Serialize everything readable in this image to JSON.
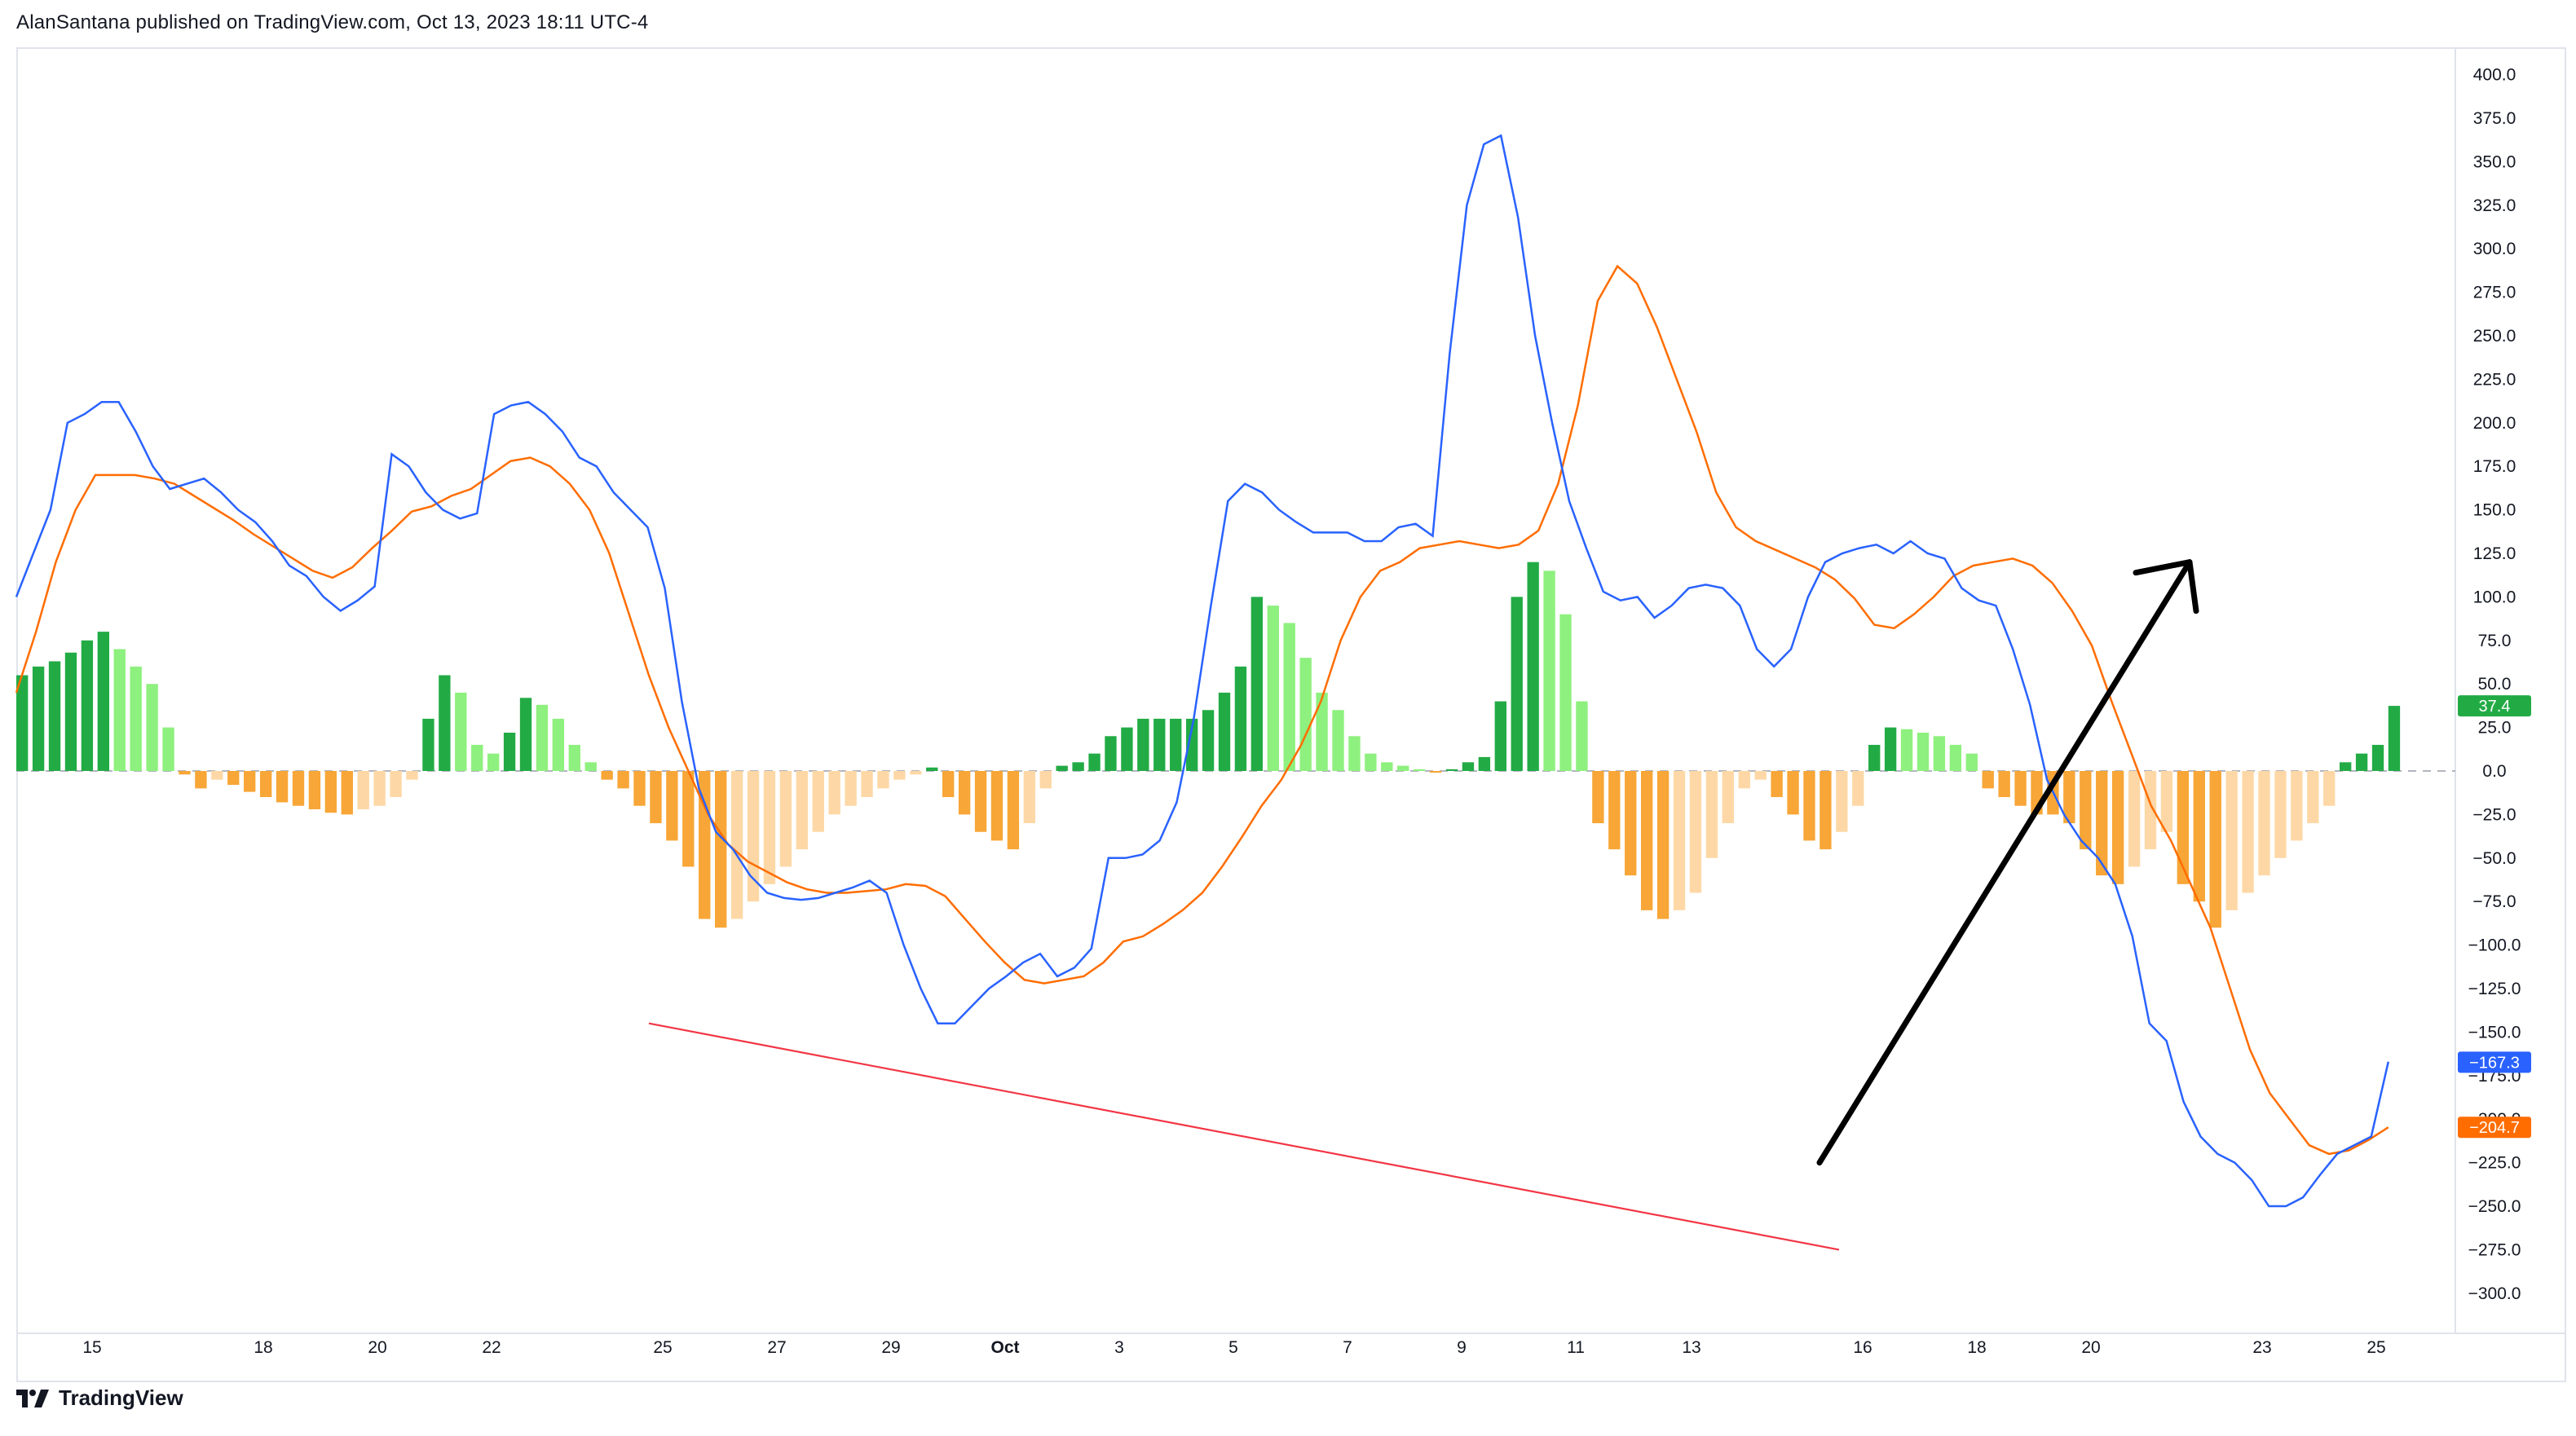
{
  "header": {
    "text": "AlanSantana published on TradingView.com, Oct 13, 2023 18:11 UTC-4"
  },
  "footer": {
    "brand": "TradingView"
  },
  "colors": {
    "macd": "#2962ff",
    "signal": "#ff6d00",
    "hist_pos_strong": "#22ab45",
    "hist_pos_weak": "#8ef07e",
    "hist_neg_strong": "#f7a637",
    "hist_neg_weak": "#fdd8a6",
    "trendline": "#f23645",
    "arrow": "#000000",
    "zero_line": "#b2b5be",
    "badge_hist": "#22ab45",
    "badge_macd": "#2962ff",
    "badge_signal": "#ff6d00"
  },
  "chart_data": {
    "type": "line",
    "title": "",
    "xlabel": "",
    "ylabel": "",
    "x_ticks": [
      "15",
      "18",
      "20",
      "22",
      "25",
      "27",
      "29",
      "Oct",
      "3",
      "5",
      "7",
      "9",
      "11",
      "13",
      "16",
      "18",
      "20",
      "23",
      "25"
    ],
    "y_ticks": [
      "400.0",
      "375.0",
      "350.0",
      "325.0",
      "300.0",
      "275.0",
      "250.0",
      "225.0",
      "200.0",
      "175.0",
      "150.0",
      "125.0",
      "100.0",
      "75.0",
      "50.0",
      "25.0",
      "0.0",
      "−25.0",
      "−50.0",
      "−75.0",
      "−100.0",
      "−125.0",
      "−150.0",
      "−175.0",
      "−200.0",
      "−225.0",
      "−250.0",
      "−275.0",
      "−300.0"
    ],
    "ylim": [
      -300,
      400
    ],
    "grid": false,
    "last_values": {
      "histogram": "37.4",
      "macd": "−167.3",
      "signal": "−204.7"
    },
    "series": [
      {
        "values": [
          100,
          125,
          150,
          200,
          205,
          212,
          212,
          195,
          175,
          162,
          165,
          168,
          160,
          150,
          143,
          132,
          118,
          112,
          100,
          92,
          98,
          106,
          182,
          175,
          160,
          150,
          145,
          148,
          205,
          210,
          212,
          205,
          195,
          180,
          175,
          160,
          150,
          140,
          105,
          40,
          -10,
          -35,
          -45,
          -60,
          -70,
          -73,
          -74,
          -73,
          -70,
          -67,
          -63,
          -70,
          -100,
          -125,
          -145,
          -145,
          -135,
          -125,
          -118,
          -110,
          -105,
          -118,
          -113,
          -102,
          -50,
          -50,
          -48,
          -40,
          -18,
          30,
          95,
          155,
          165,
          160,
          150,
          143,
          137,
          137,
          137,
          132,
          132,
          140,
          142,
          135,
          240,
          325,
          360,
          365,
          318,
          250,
          200,
          155,
          128,
          103,
          98,
          100,
          88,
          95,
          105,
          107,
          105,
          95,
          70,
          60,
          70,
          100,
          120,
          125,
          128,
          130,
          125,
          132,
          125,
          122,
          105,
          98,
          95,
          70,
          38,
          -5,
          -25,
          -40,
          -50,
          -65,
          -95,
          -145,
          -155,
          -190,
          -210,
          -220,
          -225,
          -235,
          -250,
          -250,
          -245,
          -232,
          -220,
          -215,
          -210,
          -167
        ]
      },
      {
        "values": [
          45,
          80,
          120,
          150,
          170,
          170,
          170,
          168,
          165,
          158,
          151,
          144,
          136,
          129,
          122,
          115,
          111,
          117,
          128,
          138,
          149,
          152,
          158,
          162,
          170,
          178,
          180,
          175,
          165,
          150,
          125,
          90,
          55,
          25,
          0,
          -25,
          -42,
          -52,
          -58,
          -64,
          -68,
          -70,
          -70,
          -69,
          -68,
          -65,
          -66,
          -72,
          -85,
          -98,
          -110,
          -120,
          -122,
          -120,
          -118,
          -110,
          -98,
          -95,
          -88,
          -80,
          -70,
          -55,
          -38,
          -20,
          -5,
          15,
          40,
          75,
          100,
          115,
          120,
          128,
          130,
          132,
          130,
          128,
          130,
          138,
          165,
          210,
          270,
          290,
          280,
          255,
          225,
          195,
          160,
          140,
          132,
          127,
          122,
          117,
          110,
          99,
          84,
          82,
          90,
          100,
          112,
          118,
          120,
          122,
          118,
          108,
          92,
          72,
          40,
          10,
          -20,
          -40,
          -65,
          -90,
          -125,
          -160,
          -185,
          -200,
          -215,
          -220,
          -218,
          -212,
          -204.7
        ]
      }
    ],
    "histogram": [
      55,
      60,
      63,
      68,
      75,
      80,
      70,
      60,
      50,
      25,
      -2,
      -10,
      -5,
      -8,
      -12,
      -15,
      -18,
      -20,
      -22,
      -24,
      -25,
      -22,
      -20,
      -15,
      -5,
      30,
      55,
      45,
      15,
      10,
      22,
      42,
      38,
      30,
      15,
      5,
      -5,
      -10,
      -20,
      -30,
      -40,
      -55,
      -85,
      -90,
      -85,
      -75,
      -65,
      -55,
      -45,
      -35,
      -25,
      -20,
      -15,
      -10,
      -5,
      -2,
      2,
      -15,
      -25,
      -35,
      -40,
      -45,
      -30,
      -10,
      3,
      5,
      10,
      20,
      25,
      30,
      30,
      30,
      30,
      35,
      45,
      60,
      100,
      95,
      85,
      65,
      45,
      35,
      20,
      10,
      5,
      3,
      1,
      -1,
      1,
      5,
      8,
      40,
      100,
      120,
      115,
      90,
      40,
      -30,
      -45,
      -60,
      -80,
      -85,
      -80,
      -70,
      -50,
      -30,
      -10,
      -5,
      -15,
      -25,
      -40,
      -45,
      -35,
      -20,
      15,
      25,
      24,
      22,
      20,
      15,
      10,
      -10,
      -15,
      -20,
      -25,
      -25,
      -30,
      -45,
      -60,
      -65,
      -55,
      -45,
      -35,
      -65,
      -75,
      -90,
      -80,
      -70,
      -60,
      -50,
      -40,
      -30,
      -20,
      5,
      10,
      15,
      37.4
    ]
  },
  "annotations": {
    "trendline": {
      "from": {
        "x": "Sep 24",
        "y": -145
      },
      "to": {
        "x": "Oct 15",
        "y": -275
      }
    },
    "arrow": {
      "from": {
        "x": "Oct 15",
        "y": -225
      },
      "to": {
        "x": "Oct 21",
        "y": 120
      }
    }
  }
}
